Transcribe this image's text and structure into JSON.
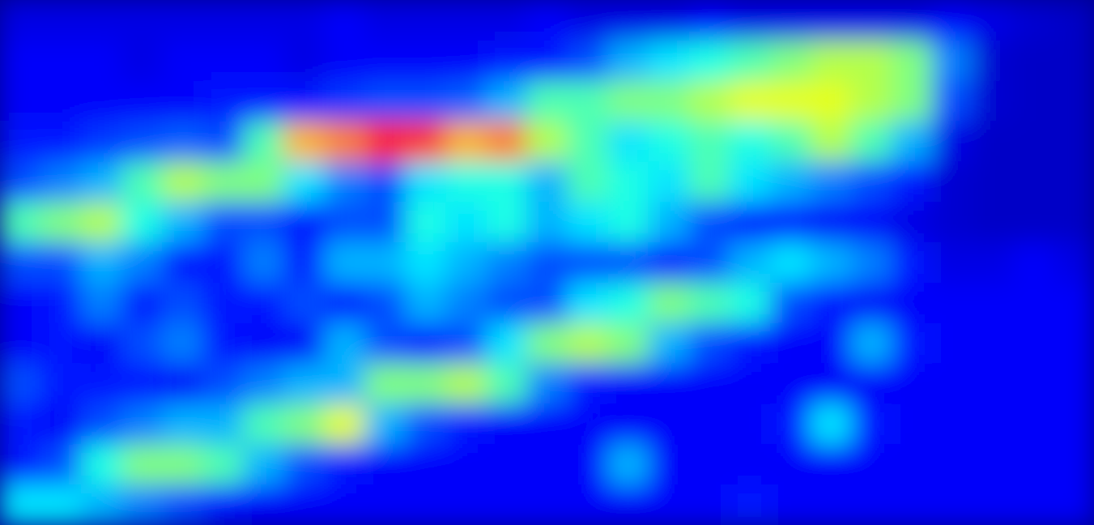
{
  "chart_data": {
    "type": "heatmap",
    "tick_labels": false,
    "zlim": [
      0,
      1
    ],
    "values": [
      [
        0.1,
        0.1,
        0.1,
        0.1,
        0.1,
        0.1,
        0.1,
        0.1,
        0.12,
        0.1,
        0.1,
        0.1,
        0.1,
        0.12,
        0.1,
        0.1,
        0.1,
        0.12,
        0.1,
        0.1,
        0.1,
        0.1,
        0.1,
        0.12,
        0.1,
        0.08,
        0.07
      ],
      [
        0.12,
        0.12,
        0.12,
        0.1,
        0.12,
        0.12,
        0.12,
        0.1,
        0.12,
        0.12,
        0.12,
        0.12,
        0.15,
        0.15,
        0.2,
        0.3,
        0.35,
        0.4,
        0.45,
        0.5,
        0.55,
        0.55,
        0.5,
        0.25,
        0.08,
        0.07,
        0.07
      ],
      [
        0.12,
        0.12,
        0.12,
        0.12,
        0.12,
        0.15,
        0.15,
        0.15,
        0.18,
        0.2,
        0.2,
        0.22,
        0.3,
        0.45,
        0.45,
        0.5,
        0.5,
        0.55,
        0.6,
        0.6,
        0.6,
        0.55,
        0.5,
        0.2,
        0.08,
        0.07,
        0.07
      ],
      [
        0.15,
        0.15,
        0.18,
        0.2,
        0.22,
        0.2,
        0.45,
        0.7,
        0.75,
        0.85,
        0.82,
        0.7,
        0.75,
        0.55,
        0.45,
        0.35,
        0.4,
        0.45,
        0.4,
        0.45,
        0.55,
        0.45,
        0.3,
        0.1,
        0.07,
        0.07,
        0.07
      ],
      [
        0.2,
        0.25,
        0.3,
        0.45,
        0.55,
        0.5,
        0.5,
        0.35,
        0.25,
        0.2,
        0.35,
        0.4,
        0.4,
        0.3,
        0.45,
        0.4,
        0.35,
        0.45,
        0.35,
        0.3,
        0.25,
        0.2,
        0.15,
        0.08,
        0.07,
        0.07,
        0.07
      ],
      [
        0.45,
        0.5,
        0.55,
        0.4,
        0.3,
        0.2,
        0.2,
        0.15,
        0.2,
        0.2,
        0.4,
        0.35,
        0.4,
        0.3,
        0.35,
        0.4,
        0.3,
        0.2,
        0.15,
        0.15,
        0.12,
        0.12,
        0.1,
        0.08,
        0.07,
        0.07,
        0.07
      ],
      [
        0.2,
        0.2,
        0.3,
        0.25,
        0.15,
        0.15,
        0.25,
        0.15,
        0.3,
        0.3,
        0.35,
        0.3,
        0.25,
        0.2,
        0.2,
        0.2,
        0.15,
        0.2,
        0.3,
        0.35,
        0.3,
        0.25,
        0.15,
        0.1,
        0.1,
        0.12,
        0.1
      ],
      [
        0.12,
        0.15,
        0.25,
        0.15,
        0.2,
        0.15,
        0.15,
        0.2,
        0.15,
        0.2,
        0.3,
        0.25,
        0.2,
        0.2,
        0.35,
        0.4,
        0.5,
        0.45,
        0.4,
        0.2,
        0.15,
        0.12,
        0.12,
        0.12,
        0.12,
        0.12,
        0.12
      ],
      [
        0.12,
        0.15,
        0.12,
        0.2,
        0.25,
        0.15,
        0.12,
        0.12,
        0.3,
        0.2,
        0.15,
        0.2,
        0.35,
        0.5,
        0.55,
        0.5,
        0.3,
        0.2,
        0.15,
        0.12,
        0.12,
        0.3,
        0.15,
        0.12,
        0.12,
        0.12,
        0.12
      ],
      [
        0.2,
        0.15,
        0.15,
        0.15,
        0.12,
        0.2,
        0.25,
        0.3,
        0.3,
        0.5,
        0.5,
        0.55,
        0.45,
        0.25,
        0.15,
        0.12,
        0.12,
        0.12,
        0.12,
        0.12,
        0.12,
        0.12,
        0.12,
        0.12,
        0.12,
        0.12,
        0.12
      ],
      [
        0.15,
        0.12,
        0.2,
        0.25,
        0.3,
        0.3,
        0.45,
        0.5,
        0.6,
        0.3,
        0.2,
        0.15,
        0.12,
        0.12,
        0.12,
        0.12,
        0.12,
        0.12,
        0.12,
        0.15,
        0.35,
        0.15,
        0.12,
        0.12,
        0.12,
        0.12,
        0.12
      ],
      [
        0.15,
        0.2,
        0.4,
        0.5,
        0.5,
        0.45,
        0.3,
        0.2,
        0.15,
        0.12,
        0.12,
        0.12,
        0.12,
        0.12,
        0.12,
        0.3,
        0.12,
        0.12,
        0.12,
        0.12,
        0.12,
        0.12,
        0.12,
        0.12,
        0.12,
        0.12,
        0.12
      ],
      [
        0.35,
        0.35,
        0.3,
        0.25,
        0.2,
        0.15,
        0.12,
        0.12,
        0.12,
        0.12,
        0.12,
        0.12,
        0.12,
        0.12,
        0.12,
        0.12,
        0.12,
        0.12,
        0.15,
        0.12,
        0.12,
        0.12,
        0.12,
        0.12,
        0.12,
        0.12,
        0.12
      ]
    ]
  }
}
